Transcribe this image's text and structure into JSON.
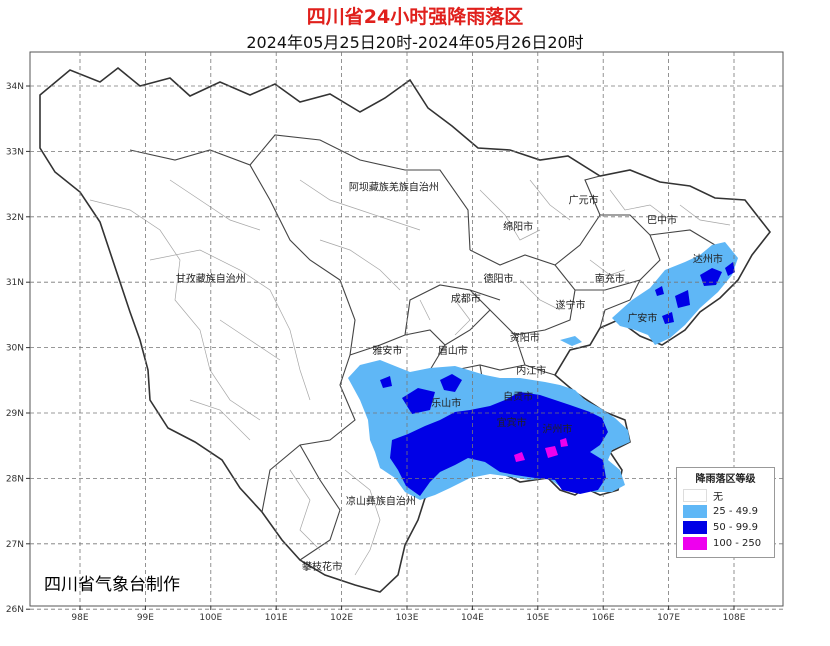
{
  "title": "四川省24小时强降雨落区",
  "subtitle": "2024年05月25日20时-2024年05月26日20时",
  "agency": "四川省气象台制作",
  "axes": {
    "lat_labels": [
      "34N",
      "33N",
      "32N",
      "31N",
      "30N",
      "29N",
      "28N",
      "27N",
      "26N"
    ],
    "lon_labels": [
      "98E",
      "99E",
      "100E",
      "101E",
      "102E",
      "103E",
      "104E",
      "105E",
      "106E",
      "107E",
      "108E"
    ]
  },
  "places": [
    {
      "name": "阿坝藏族羌族自治州",
      "lon": 102.8,
      "lat": 32.4
    },
    {
      "name": "甘孜藏族自治州",
      "lon": 100.0,
      "lat": 31.0
    },
    {
      "name": "凉山彝族自治州",
      "lon": 102.6,
      "lat": 27.6
    },
    {
      "name": "攀枝花市",
      "lon": 101.7,
      "lat": 26.6
    },
    {
      "name": "雅安市",
      "lon": 102.7,
      "lat": 29.9
    },
    {
      "name": "眉山市",
      "lon": 103.7,
      "lat": 29.9
    },
    {
      "name": "乐山市",
      "lon": 103.6,
      "lat": 29.1
    },
    {
      "name": "成都市",
      "lon": 103.9,
      "lat": 30.7
    },
    {
      "name": "德阳市",
      "lon": 104.4,
      "lat": 31.0
    },
    {
      "name": "绵阳市",
      "lon": 104.7,
      "lat": 31.8
    },
    {
      "name": "广元市",
      "lon": 105.7,
      "lat": 32.2
    },
    {
      "name": "巴中市",
      "lon": 106.9,
      "lat": 31.9
    },
    {
      "name": "达州市",
      "lon": 107.6,
      "lat": 31.3
    },
    {
      "name": "南充市",
      "lon": 106.1,
      "lat": 31.0
    },
    {
      "name": "遂宁市",
      "lon": 105.5,
      "lat": 30.6
    },
    {
      "name": "广安市",
      "lon": 106.6,
      "lat": 30.4
    },
    {
      "name": "资阳市",
      "lon": 104.8,
      "lat": 30.1
    },
    {
      "name": "内江市",
      "lon": 104.9,
      "lat": 29.6
    },
    {
      "name": "自贡市",
      "lon": 104.7,
      "lat": 29.2
    },
    {
      "name": "宜宾市",
      "lon": 104.6,
      "lat": 28.8
    },
    {
      "name": "泸州市",
      "lon": 105.3,
      "lat": 28.7
    }
  ],
  "legend": {
    "title": "降雨落区等级",
    "items": [
      {
        "label": "无",
        "color": "#ffffff"
      },
      {
        "label": "25 - 49.9",
        "color": "#5fb7f6"
      },
      {
        "label": "50 - 99.9",
        "color": "#0000e6"
      },
      {
        "label": "100 - 250",
        "color": "#ee00ee"
      }
    ]
  },
  "colors": {
    "heavy": "#5fb7f6",
    "rainstorm": "#0000e6",
    "torrential": "#ee00ee"
  }
}
